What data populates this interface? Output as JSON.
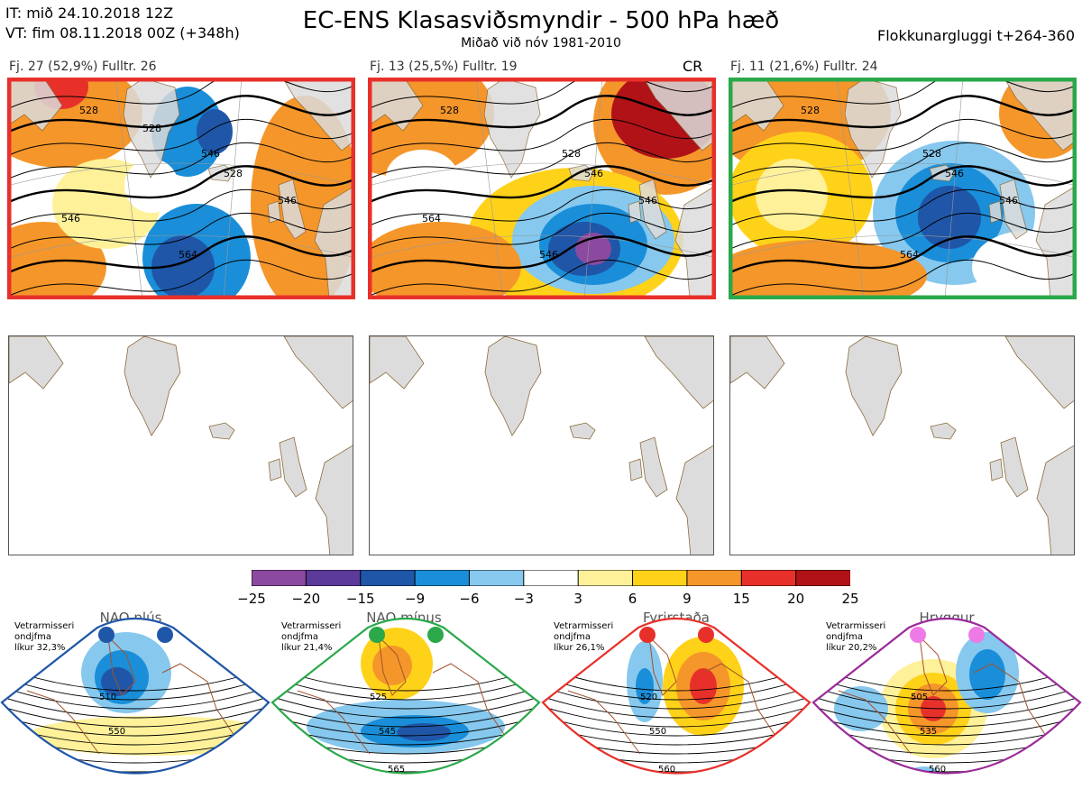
{
  "header": {
    "it_line": "IT: mið 24.10.2018 12Z",
    "vt_line": "VT: fim 08.11.2018 00Z  (+348h)",
    "title": "EC-ENS Klasasviðsmyndir - 500 hPa hæð",
    "subtitle": "Miðað við nóv 1981-2010",
    "window": "Flokkunargluggi t+264-360"
  },
  "clusters": [
    {
      "label": "Fj. 27 (52,9%)   Fulltr. 26",
      "flag": "",
      "border_color": "#e8302a",
      "contour_labels": [
        "528",
        "546",
        "528",
        "546",
        "564",
        "546",
        "528"
      ]
    },
    {
      "label": "Fj. 13 (25,5%)   Fulltr. 19",
      "flag": "CR",
      "border_color": "#e8302a",
      "contour_labels": [
        "528",
        "528",
        "546",
        "546",
        "546",
        "564"
      ]
    },
    {
      "label": "Fj. 11 (21,6%)   Fulltr. 24",
      "flag": "",
      "border_color": "#2aa84a",
      "contour_labels": [
        "528",
        "528",
        "546",
        "546",
        "564"
      ]
    }
  ],
  "colorbar": {
    "colors": [
      "#8b4a9f",
      "#5b3a9a",
      "#1f56a8",
      "#1a8ed8",
      "#86c8ee",
      "#ffffff",
      "#fff19a",
      "#ffd21a",
      "#f5962a",
      "#e8302a",
      "#b01218"
    ],
    "ticks": [
      "−25",
      "−20",
      "−15",
      "−9",
      "−6",
      "−3",
      "3",
      "6",
      "9",
      "15",
      "20",
      "25"
    ]
  },
  "regimes": [
    {
      "name": "NAO plús",
      "text": [
        "Vetrarmisseri",
        "ondjfma",
        "líkur 32,3%"
      ],
      "color": "#1f56a8",
      "contour_labels": [
        "510",
        "550"
      ]
    },
    {
      "name": "NAO mínus",
      "text": [
        "Vetrarmisseri",
        "ondjfma",
        "líkur 21,4%"
      ],
      "color": "#2aa84a",
      "contour_labels": [
        "525",
        "545",
        "565"
      ]
    },
    {
      "name": "Fyrirstaða",
      "text": [
        "Vetrarmisseri",
        "ondjfma",
        "líkur 26,1%"
      ],
      "color": "#e8302a",
      "contour_labels": [
        "520",
        "550",
        "560"
      ]
    },
    {
      "name": "Hryggur",
      "text": [
        "Vetrarmisseri",
        "ondjfma",
        "líkur 20,2%"
      ],
      "color": "#9b2a9a",
      "marker_color": "#ee7ae8",
      "contour_labels": [
        "505",
        "535",
        "560"
      ]
    }
  ]
}
